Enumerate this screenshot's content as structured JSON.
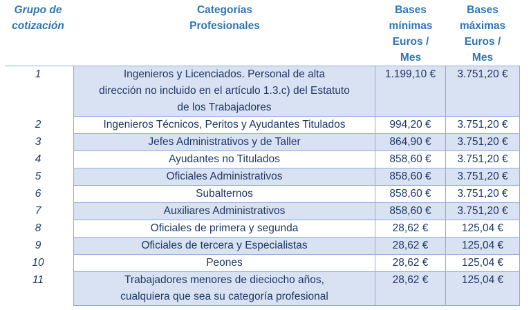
{
  "headers": {
    "grupo": [
      "Grupo de",
      "cotización"
    ],
    "categorias": [
      "Categorías",
      "Profesionales"
    ],
    "minimas": [
      "Bases",
      "mínimas",
      "Euros /",
      "Mes"
    ],
    "maximas": [
      "Bases",
      "máximas",
      "Euros /",
      "Mes"
    ]
  },
  "rows": [
    {
      "grupo": "1",
      "categoria": [
        "Ingenieros y Licenciados. Personal de alta",
        "dirección no incluido en el artículo 1.3.c) del Estatuto",
        "de los Trabajadores"
      ],
      "minima": "1.199,10 €",
      "maxima": "3.751,20 €"
    },
    {
      "grupo": "2",
      "categoria": [
        "Ingenieros Técnicos, Peritos y Ayudantes Titulados"
      ],
      "minima": "994,20 €",
      "maxima": "3.751,20 €"
    },
    {
      "grupo": "3",
      "categoria": [
        "Jefes Administrativos y de Taller"
      ],
      "minima": "864,90 €",
      "maxima": "3.751,20 €"
    },
    {
      "grupo": "4",
      "categoria": [
        "Ayudantes no Titulados"
      ],
      "minima": "858,60 €",
      "maxima": "3.751,20 €"
    },
    {
      "grupo": "5",
      "categoria": [
        "Oficiales Administrativos"
      ],
      "minima": "858,60 €",
      "maxima": "3.751,20 €"
    },
    {
      "grupo": "6",
      "categoria": [
        "Subalternos"
      ],
      "minima": "858,60 €",
      "maxima": "3.751,20 €"
    },
    {
      "grupo": "7",
      "categoria": [
        "Auxiliares Administrativos"
      ],
      "minima": "858,60 €",
      "maxima": "3.751,20 €"
    },
    {
      "grupo": "8",
      "categoria": [
        "Oficiales de primera y segunda"
      ],
      "minima": "28,62 €",
      "maxima": "125,04 €"
    },
    {
      "grupo": "9",
      "categoria": [
        "Oficiales de tercera y Especialistas"
      ],
      "minima": "28,62 €",
      "maxima": "125,04 €"
    },
    {
      "grupo": "10",
      "categoria": [
        "Peones"
      ],
      "minima": "28,62 €",
      "maxima": "125,04 €"
    },
    {
      "grupo": "11",
      "categoria": [
        "Trabajadores menores de dieciocho años,",
        "cualquiera que sea su categoría profesional"
      ],
      "minima": "28,62 €",
      "maxima": "125,04 €"
    }
  ]
}
